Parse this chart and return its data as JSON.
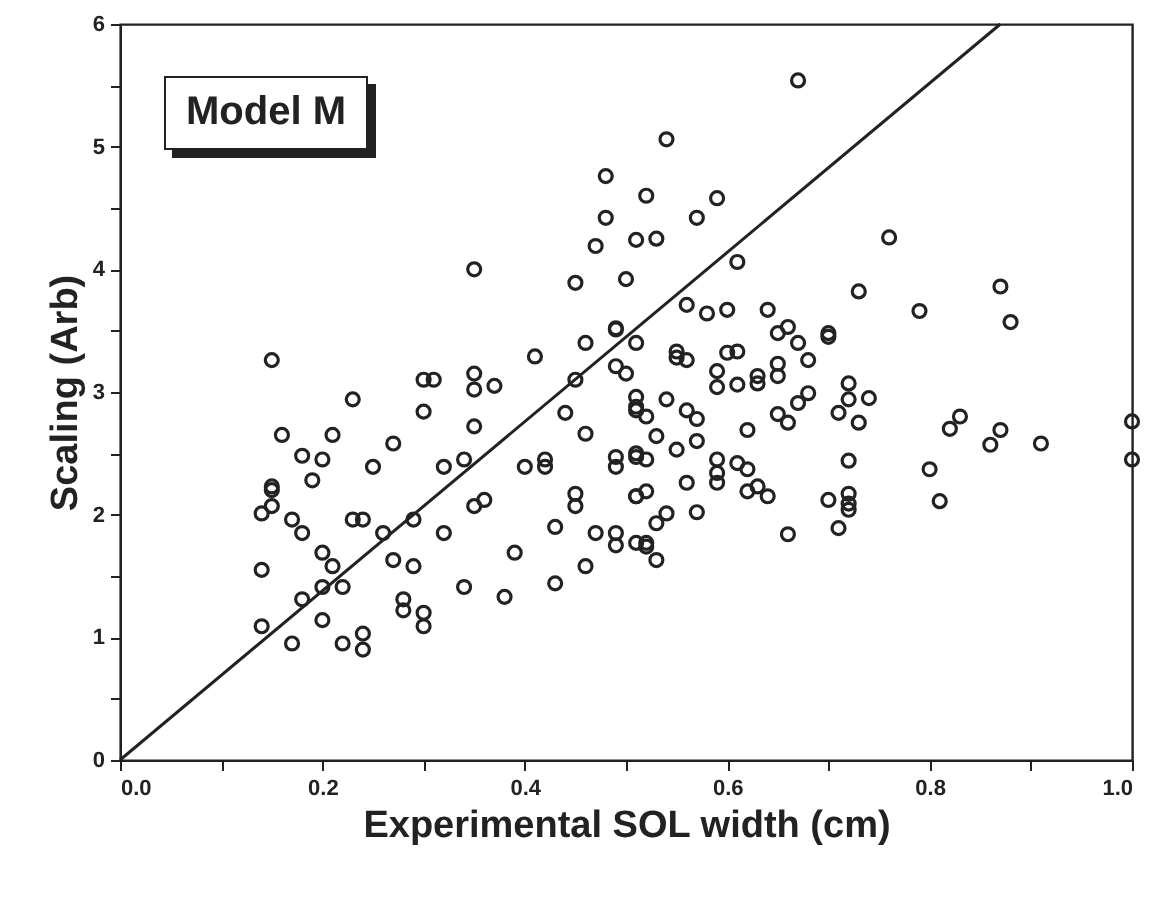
{
  "chart_data": {
    "type": "scatter",
    "xlabel": "Experimental SOL width (cm)",
    "ylabel": "Scaling (Arb)",
    "annotations": [
      "Model M"
    ],
    "xlim": [
      0,
      1
    ],
    "ylim": [
      0,
      6
    ],
    "xticks": [
      {
        "value": 0,
        "label": "0.0"
      },
      {
        "value": 0.1,
        "label": null
      },
      0.2,
      {
        "value": 0.3,
        "label": null
      },
      0.4,
      {
        "value": 0.5,
        "label": null
      },
      0.6,
      {
        "value": 0.7,
        "label": null
      },
      0.8,
      {
        "value": 0.9,
        "label": null
      },
      {
        "value": 1,
        "label": "1.0"
      }
    ],
    "yticks": [
      0,
      {
        "value": 0.5,
        "label": null
      },
      1,
      {
        "value": 1.5,
        "label": null
      },
      2,
      {
        "value": 2.5,
        "label": null
      },
      3,
      {
        "value": 3.5,
        "label": null
      },
      4,
      {
        "value": 4.5,
        "label": null
      },
      5,
      {
        "value": 5.5,
        "label": null
      },
      6
    ],
    "grid": false,
    "series": [
      {
        "type": "scatter",
        "marker": "circle",
        "color": "#222222",
        "x": [
          0.35,
          0.48,
          0.48,
          0.47,
          0.45,
          0.41,
          0.49,
          0.46,
          0.3,
          0.31,
          0.23,
          0.16,
          0.21,
          0.18,
          0.3,
          0.35,
          0.37,
          0.38,
          0.43,
          0.46,
          0.24,
          0.14,
          0.15,
          0.14,
          0.14,
          0.17,
          0.22,
          0.24,
          0.28,
          0.3,
          0.34,
          0.19,
          0.2,
          0.25,
          0.27,
          0.26,
          0.18,
          0.21,
          0.18,
          0.29,
          0.32,
          0.32,
          0.35,
          0.36,
          0.39,
          0.4,
          0.42,
          0.44,
          0.45,
          0.46,
          0.42,
          0.45,
          0.45,
          0.47,
          0.43,
          0.49,
          0.51,
          0.49,
          0.51,
          0.51,
          0.51,
          0.51,
          0.5,
          0.35,
          0.15,
          0.17,
          0.2,
          0.15,
          0.22,
          0.24,
          0.27,
          0.23,
          0.2,
          0.28,
          0.15,
          0.2,
          0.3,
          0.29,
          0.34,
          0.35,
          0.52,
          0.67,
          0.54,
          0.59,
          0.52,
          0.53,
          0.76,
          0.57,
          0.61,
          0.87,
          0.73,
          0.79,
          0.88,
          0.55,
          0.58,
          0.6,
          0.64,
          0.56,
          0.65,
          0.66,
          0.7,
          0.7,
          0.55,
          0.56,
          0.59,
          0.61,
          0.6,
          0.65,
          0.67,
          0.68,
          0.65,
          0.63,
          0.59,
          0.61,
          0.63,
          0.67,
          0.68,
          0.72,
          0.72,
          0.74,
          0.71,
          0.73,
          0.82,
          0.83,
          0.86,
          0.87,
          0.91,
          1.0,
          1.0,
          0.8,
          0.81,
          0.72,
          0.72,
          0.72,
          0.72,
          0.71,
          0.7,
          0.66,
          0.56,
          0.57,
          0.62,
          0.66,
          0.65,
          0.59,
          0.61,
          0.62,
          0.59,
          0.59,
          0.62,
          0.63,
          0.64,
          0.56,
          0.57,
          0.57,
          0.55,
          0.53,
          0.52,
          0.51,
          0.49,
          0.51,
          0.52,
          0.54,
          0.53,
          0.52,
          0.53,
          0.49,
          0.51,
          0.52,
          0.54,
          0.51,
          0.49,
          0.51,
          0.49,
          0.5
        ],
        "values": [
          4.0,
          4.76,
          4.42,
          4.19,
          3.89,
          3.29,
          3.52,
          3.4,
          3.1,
          3.1,
          2.94,
          2.65,
          2.65,
          2.48,
          2.84,
          3.02,
          3.05,
          1.33,
          1.44,
          1.58,
          0.9,
          2.01,
          2.2,
          1.55,
          1.09,
          0.95,
          0.95,
          1.03,
          1.22,
          1.2,
          1.41,
          2.28,
          2.45,
          2.39,
          2.58,
          1.85,
          1.85,
          1.58,
          1.31,
          1.58,
          1.85,
          2.39,
          2.72,
          2.12,
          1.69,
          2.39,
          2.39,
          2.83,
          3.1,
          2.66,
          2.45,
          2.07,
          2.17,
          1.85,
          1.9,
          1.85,
          1.77,
          2.39,
          2.47,
          2.85,
          2.15,
          4.24,
          3.92,
          3.15,
          3.26,
          1.96,
          1.69,
          2.07,
          1.41,
          1.96,
          1.63,
          1.96,
          1.41,
          1.31,
          2.23,
          1.14,
          1.09,
          1.96,
          2.45,
          2.07,
          1.74,
          5.54,
          5.06,
          4.58,
          4.6,
          4.25,
          4.26,
          4.42,
          4.06,
          3.86,
          3.82,
          3.66,
          3.57,
          3.28,
          3.64,
          3.67,
          3.67,
          3.71,
          3.48,
          3.53,
          3.48,
          3.45,
          3.33,
          3.26,
          3.17,
          3.33,
          3.32,
          3.23,
          3.4,
          3.26,
          3.13,
          3.13,
          3.04,
          3.06,
          3.07,
          2.91,
          2.99,
          2.94,
          3.07,
          2.95,
          2.83,
          2.75,
          2.7,
          2.8,
          2.57,
          2.69,
          2.58,
          2.76,
          2.45,
          2.37,
          2.11,
          2.09,
          2.44,
          2.17,
          2.04,
          1.89,
          2.12,
          1.84,
          2.85,
          2.78,
          2.69,
          2.75,
          2.82,
          2.45,
          2.42,
          2.37,
          2.34,
          2.26,
          2.19,
          2.23,
          2.15,
          2.26,
          2.02,
          2.6,
          2.53,
          2.64,
          2.45,
          2.5,
          2.47,
          2.15,
          2.19,
          2.01,
          1.93,
          1.77,
          1.63,
          1.75,
          2.88,
          2.8,
          2.94,
          2.96,
          3.51,
          3.4,
          3.21,
          3.15
        ]
      },
      {
        "type": "line",
        "color": "#222222",
        "line_style": "solid",
        "x": [
          0,
          0.87
        ],
        "values": [
          0,
          6
        ]
      }
    ]
  }
}
